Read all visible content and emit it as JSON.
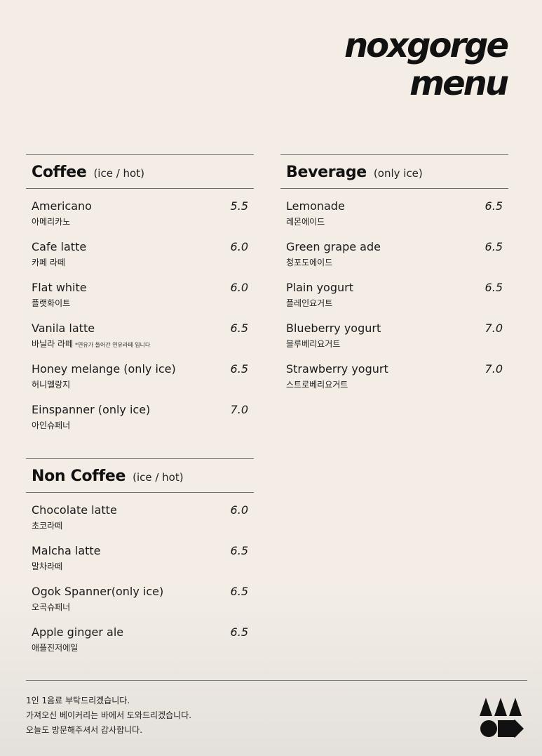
{
  "brand": {
    "line1": "noxgorge",
    "line2": "menu"
  },
  "coffee": {
    "title": "Coffee",
    "note": "(ice / hot)",
    "items": [
      {
        "name": "Americano",
        "ko": "아메리카노",
        "price": "5.5"
      },
      {
        "name": "Cafe latte",
        "ko": "카페 라떼",
        "price": "6.0"
      },
      {
        "name": "Flat white",
        "ko": "플랫화이트",
        "price": "6.0"
      },
      {
        "name": "Vanila latte",
        "ko": "바닐라 라떼",
        "ko_note": "*연유가 들어간 연유라떼 입니다",
        "price": "6.5"
      },
      {
        "name": "Honey melange (only ice)",
        "ko": "허니멜랑지",
        "price": "6.5"
      },
      {
        "name": "Einspanner (only ice)",
        "ko": "아인슈페너",
        "price": "7.0"
      }
    ]
  },
  "non_coffee": {
    "title": "Non Coffee",
    "note": "(ice / hot)",
    "items": [
      {
        "name": "Chocolate latte",
        "ko": "초코라떼",
        "price": "6.0"
      },
      {
        "name": "Malcha latte",
        "ko": "말차라떼",
        "price": "6.5"
      },
      {
        "name": "Ogok Spanner(only ice)",
        "ko": "오곡슈페너",
        "price": "6.5"
      },
      {
        "name": "Apple ginger ale",
        "ko": "애플진저에일",
        "price": "6.5"
      }
    ]
  },
  "beverage": {
    "title": "Beverage",
    "note": "(only ice)",
    "items": [
      {
        "name": "Lemonade",
        "ko": "레몬에이드",
        "price": "6.5"
      },
      {
        "name": "Green grape ade",
        "ko": "청포도에이드",
        "price": "6.5"
      },
      {
        "name": "Plain yogurt",
        "ko": "플레인요거트",
        "price": "6.5"
      },
      {
        "name": "Blueberry yogurt",
        "ko": "블루베리요거트",
        "price": "7.0"
      },
      {
        "name": "Strawberry yogurt",
        "ko": "스트로베리요거트",
        "price": "7.0"
      }
    ]
  },
  "footer": {
    "lines": [
      "1인 1음료 부탁드리겠습니다.",
      "가져오신 베이커리는 바에서 도와드리겠습니다.",
      "오늘도 방문해주셔서 감사합니다."
    ]
  },
  "logo": {
    "icon": "geometric-shapes-logo",
    "color": "#111111"
  }
}
